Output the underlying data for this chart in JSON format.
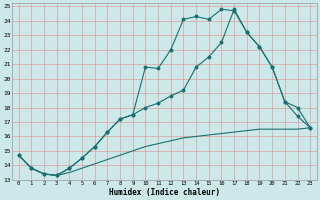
{
  "xlabel": "Humidex (Indice chaleur)",
  "bg_color": "#cce8e8",
  "grid_color": "#dda0a0",
  "line_color": "#1a7070",
  "xlim": [
    -0.5,
    23.5
  ],
  "ylim": [
    13,
    25.2
  ],
  "xticks": [
    0,
    1,
    2,
    3,
    4,
    5,
    6,
    7,
    8,
    9,
    10,
    11,
    12,
    13,
    14,
    15,
    16,
    17,
    18,
    19,
    20,
    21,
    22,
    23
  ],
  "yticks": [
    13,
    14,
    15,
    16,
    17,
    18,
    19,
    20,
    21,
    22,
    23,
    24,
    25
  ],
  "line1_x": [
    0,
    1,
    2,
    3,
    4,
    5,
    6,
    7,
    8,
    9,
    10,
    11,
    12,
    13,
    14,
    15,
    16,
    17,
    18,
    19,
    20,
    21,
    22,
    23
  ],
  "line1_y": [
    14.7,
    13.8,
    13.4,
    13.3,
    13.5,
    13.8,
    14.1,
    14.4,
    14.7,
    15.0,
    15.3,
    15.5,
    15.7,
    15.9,
    16.0,
    16.1,
    16.2,
    16.3,
    16.4,
    16.5,
    16.5,
    16.5,
    16.5,
    16.6
  ],
  "line2_x": [
    0,
    1,
    2,
    3,
    4,
    5,
    6,
    7,
    8,
    9,
    10,
    11,
    12,
    13,
    14,
    15,
    16,
    17,
    18,
    19,
    20,
    21,
    22,
    23
  ],
  "line2_y": [
    14.7,
    13.8,
    13.4,
    13.3,
    13.8,
    14.5,
    15.3,
    16.3,
    17.2,
    17.5,
    20.8,
    20.7,
    22.0,
    24.1,
    24.3,
    24.1,
    24.8,
    24.7,
    23.2,
    22.2,
    20.8,
    18.4,
    18.0,
    16.6
  ],
  "line3_x": [
    0,
    1,
    2,
    3,
    4,
    5,
    6,
    7,
    8,
    9,
    10,
    11,
    12,
    13,
    14,
    15,
    16,
    17,
    18,
    19,
    20,
    21,
    22,
    23
  ],
  "line3_y": [
    14.7,
    13.8,
    13.4,
    13.3,
    13.8,
    14.5,
    15.3,
    16.3,
    17.2,
    17.5,
    18.0,
    18.3,
    18.8,
    19.2,
    20.8,
    21.5,
    22.5,
    24.8,
    23.2,
    22.2,
    20.8,
    18.4,
    17.4,
    16.6
  ]
}
